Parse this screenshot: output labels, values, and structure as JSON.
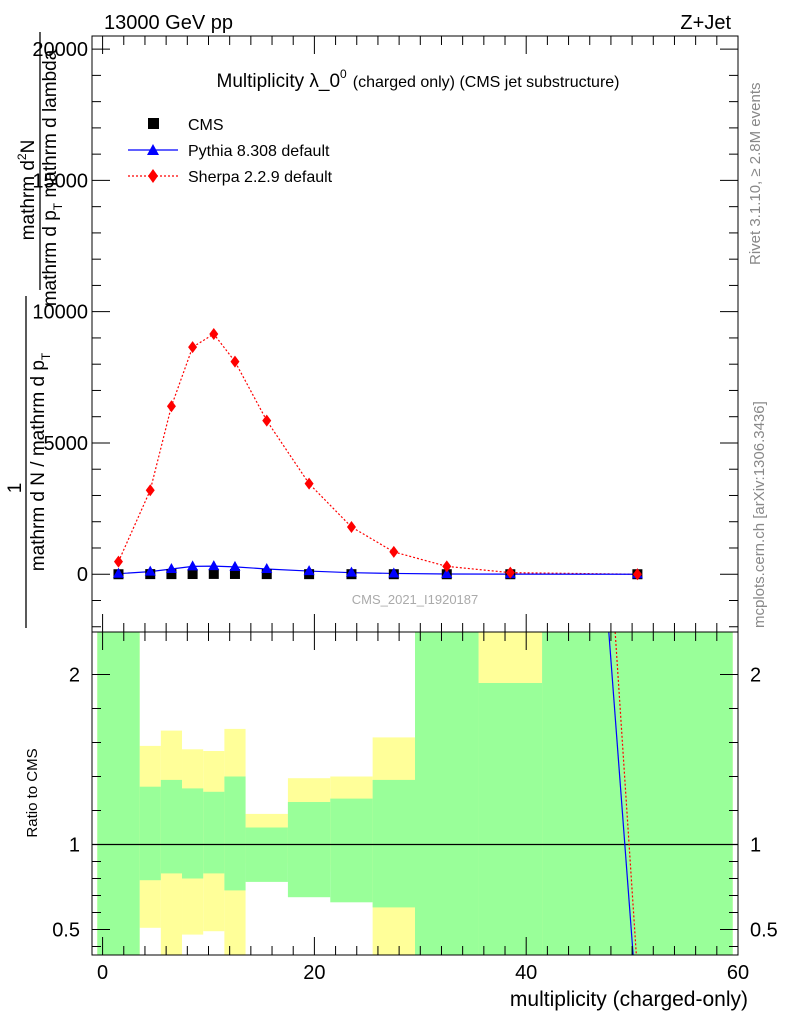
{
  "header": {
    "left": "13000 GeV pp",
    "right": "Z+Jet",
    "side_top": "Rivet 3.1.10, ≥ 2.8M events",
    "side_bottom": "mcplots.cern.ch [arXiv:1306.3436]",
    "watermark": "CMS_2021_I1920187"
  },
  "chart_data": [
    {
      "type": "scatter",
      "title_main": "Multiplicity λ_0",
      "title_sup": "0",
      "title_suffix": "(charged only) (CMS jet substructure)",
      "ylabel_num_1": "mathrm d",
      "ylabel_num_sup": "2",
      "ylabel_num_2": "N",
      "ylabel_den_1": "mathrm d p",
      "ylabel_den_sub": "T",
      "ylabel_den_2": " mathrm d lambda",
      "ylabel_pre_num": "1",
      "ylabel_pre_den_1": "mathrm d N / mathrm d p",
      "ylabel_pre_den_sub": "T",
      "xlim": [
        -1,
        60
      ],
      "ylim": [
        -2200,
        20500
      ],
      "y_ticks": [
        0,
        5000,
        10000,
        15000,
        20000
      ],
      "y_tick_labels": [
        "0",
        "5000",
        "10000",
        "15000",
        "20000"
      ],
      "legend_position": "top-left",
      "series": [
        {
          "name": "CMS",
          "color": "#000000",
          "marker": "square",
          "x": [
            1.5,
            4.5,
            6.5,
            8.5,
            10.5,
            12.5,
            15.5,
            19.5,
            23.5,
            27.5,
            32.5,
            38.5,
            50.5
          ],
          "y": [
            0,
            5,
            5,
            8,
            12,
            10,
            5,
            3,
            2,
            1,
            0,
            0,
            0
          ]
        },
        {
          "name": "Pythia 8.308 default",
          "color": "#0000ff",
          "marker": "triangle",
          "line": "solid",
          "x": [
            1.5,
            4.5,
            6.5,
            8.5,
            10.5,
            12.5,
            15.5,
            19.5,
            23.5,
            27.5,
            32.5,
            38.5,
            50.5
          ],
          "y": [
            20,
            100,
            200,
            300,
            310,
            280,
            200,
            120,
            60,
            30,
            10,
            5,
            0
          ]
        },
        {
          "name": "Sherpa 2.2.9 default",
          "color": "#ff0000",
          "marker": "diamond",
          "line": "dotted",
          "x": [
            1.5,
            4.5,
            6.5,
            8.5,
            10.5,
            12.5,
            15.5,
            19.5,
            23.5,
            27.5,
            32.5,
            38.5,
            50.5
          ],
          "y": [
            480,
            3200,
            6400,
            8650,
            9150,
            8100,
            5850,
            3450,
            1800,
            850,
            300,
            60,
            0
          ]
        }
      ]
    },
    {
      "type": "area",
      "ylabel": "Ratio to CMS",
      "xlabel": "multiplicity (charged-only)",
      "xlim": [
        -1,
        60
      ],
      "ylim": [
        0.35,
        2.25
      ],
      "reference": 1,
      "x_ticks": [
        0,
        20,
        40,
        60
      ],
      "x_tick_labels": [
        "0",
        "20",
        "40",
        "60"
      ],
      "y_ticks": [
        0.5,
        1,
        2
      ],
      "y_tick_labels": [
        "0.5",
        "1",
        "2"
      ],
      "bins": [
        {
          "lo": -0.5,
          "hi": 3.5,
          "g_lo": 0.35,
          "g_hi": 2.25,
          "y_lo": 0.35,
          "y_hi": 2.25
        },
        {
          "lo": 3.5,
          "hi": 5.5,
          "g_lo": 0.79,
          "g_hi": 1.34,
          "y_lo": 0.51,
          "y_hi": 1.58
        },
        {
          "lo": 5.5,
          "hi": 7.5,
          "g_lo": 0.83,
          "g_hi": 1.38,
          "y_lo": 0.35,
          "y_hi": 1.67
        },
        {
          "lo": 7.5,
          "hi": 9.5,
          "g_lo": 0.8,
          "g_hi": 1.33,
          "y_lo": 0.47,
          "y_hi": 1.56
        },
        {
          "lo": 9.5,
          "hi": 11.5,
          "g_lo": 0.83,
          "g_hi": 1.31,
          "y_lo": 0.49,
          "y_hi": 1.55
        },
        {
          "lo": 11.5,
          "hi": 13.5,
          "g_lo": 0.73,
          "g_hi": 1.4,
          "y_lo": 0.35,
          "y_hi": 1.68
        },
        {
          "lo": 13.5,
          "hi": 17.5,
          "g_lo": 0.78,
          "g_hi": 1.1,
          "y_lo": 0.89,
          "y_hi": 1.18
        },
        {
          "lo": 17.5,
          "hi": 21.5,
          "g_lo": 0.69,
          "g_hi": 1.25,
          "y_lo": 0.88,
          "y_hi": 1.39
        },
        {
          "lo": 21.5,
          "hi": 25.5,
          "g_lo": 0.66,
          "g_hi": 1.27,
          "y_lo": 0.84,
          "y_hi": 1.4
        },
        {
          "lo": 25.5,
          "hi": 29.5,
          "g_lo": 0.63,
          "g_hi": 1.38,
          "y_lo": 0.35,
          "y_hi": 1.63
        },
        {
          "lo": 29.5,
          "hi": 35.5,
          "g_lo": 0.35,
          "g_hi": 2.25,
          "y_lo": 0.35,
          "y_hi": 2.25
        },
        {
          "lo": 35.5,
          "hi": 41.5,
          "g_lo": 0.35,
          "g_hi": 1.95,
          "y_lo": 0.35,
          "y_hi": 2.25
        },
        {
          "lo": 41.5,
          "hi": 59.5,
          "g_lo": 0.35,
          "g_hi": 2.25,
          "y_lo": 0.35,
          "y_hi": 2.25
        }
      ],
      "lines": [
        {
          "name": "Pythia 8.308 default",
          "color": "#0000ff",
          "style": "solid",
          "x": [
            47.8,
            50.1
          ],
          "y": [
            2.25,
            0.35
          ]
        },
        {
          "name": "Sherpa 2.2.9 default",
          "color": "#ff0000",
          "style": "dotted",
          "x": [
            48.4,
            50.4
          ],
          "y": [
            2.25,
            0.35
          ]
        }
      ]
    }
  ]
}
